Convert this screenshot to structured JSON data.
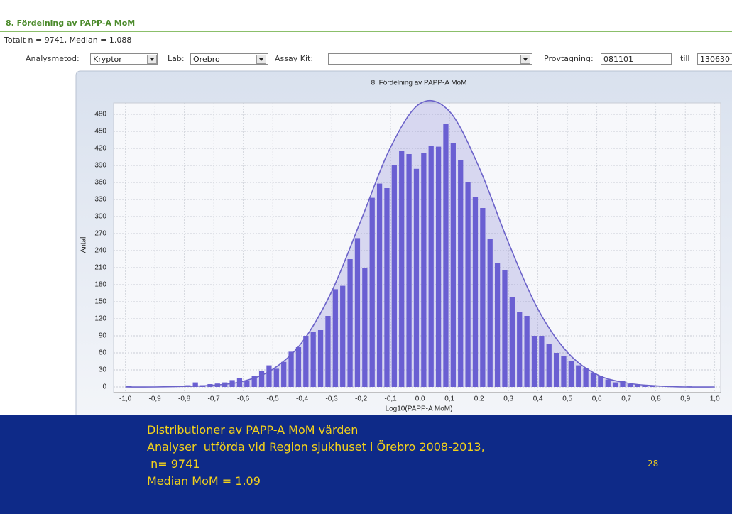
{
  "header": {
    "title": "8. Fördelning av PAPP-A MoM",
    "summary": "Totalt n = 9741, Median = 1.088"
  },
  "filters": [
    {
      "label": "Analysmetod:",
      "value": "Kryptor"
    },
    {
      "label": "Lab:",
      "value": "Örebro"
    },
    {
      "label": "Assay Kit:",
      "value": ""
    },
    {
      "label": "Provtagning:",
      "value": "081101"
    },
    {
      "label": "till",
      "value": "130630"
    }
  ],
  "chart_data": {
    "type": "histogram",
    "title": "8. Fördelning av PAPP-A MoM",
    "x_label": "Log10(PAPP-A MoM)",
    "y_label": "Antal",
    "color": "#6a5fd2",
    "bins": [
      -1,
      -0.975,
      -0.95,
      -0.925,
      -0.9,
      -0.875,
      -0.85,
      -0.825,
      -0.8,
      -0.775,
      -0.75,
      -0.725,
      -0.7,
      -0.675,
      -0.65,
      -0.625,
      -0.6,
      -0.575,
      -0.55,
      -0.525,
      -0.5,
      -0.475,
      -0.45,
      -0.425,
      -0.4,
      -0.375,
      -0.35,
      -0.325,
      -0.3,
      -0.275,
      -0.25,
      -0.225,
      -0.2,
      -0.175,
      -0.15,
      -0.125,
      -0.1,
      -0.075,
      -0.05,
      -0.025,
      0,
      0.025,
      0.05,
      0.075,
      0.1,
      0.125,
      0.15,
      0.175,
      0.2,
      0.225,
      0.25,
      0.275,
      0.3,
      0.325,
      0.35,
      0.375,
      0.4,
      0.425,
      0.45,
      0.475,
      0.5,
      0.525,
      0.55,
      0.575,
      0.6,
      0.625,
      0.65,
      0.675,
      0.7,
      0.725,
      0.75,
      0.775,
      0.8,
      0.825,
      0.85,
      0.875,
      0.9,
      0.925,
      0.95,
      0.975,
      1
    ],
    "values": [
      2,
      0,
      0,
      0,
      0,
      0,
      0,
      1,
      3,
      8,
      3,
      5,
      6,
      8,
      12,
      15,
      10,
      20,
      28,
      38,
      32,
      44,
      62,
      70,
      90,
      97,
      100,
      125,
      172,
      178,
      225,
      262,
      210,
      333,
      358,
      350,
      390,
      415,
      410,
      384,
      412,
      425,
      423,
      463,
      430,
      400,
      360,
      335,
      315,
      260,
      218,
      206,
      158,
      132,
      125,
      90,
      90,
      75,
      60,
      55,
      45,
      38,
      33,
      25,
      20,
      13,
      8,
      10,
      5,
      5,
      3,
      3,
      0,
      0,
      0,
      0,
      1,
      0,
      0,
      0
    ],
    "curve": {
      "color": "#6b62c9",
      "x": [
        -1,
        -0.9,
        -0.8,
        -0.7,
        -0.6,
        -0.5,
        -0.4,
        -0.3,
        -0.2,
        -0.1,
        0,
        0.1,
        0.2,
        0.3,
        0.4,
        0.5,
        0.6,
        0.7,
        0.8,
        0.9,
        1
      ],
      "values": [
        0,
        0,
        1,
        3,
        10,
        31,
        79,
        168,
        294,
        422,
        499,
        485,
        387,
        254,
        137,
        61,
        22,
        7,
        2,
        0,
        0
      ]
    },
    "xlim": [
      -1.04,
      1.02
    ],
    "xticks": [
      {
        "value": -1,
        "label": "-1,0"
      },
      {
        "value": -0.9,
        "label": "-0,9"
      },
      {
        "value": -0.8,
        "label": "-0,8"
      },
      {
        "value": -0.7,
        "label": "-0,7"
      },
      {
        "value": -0.6,
        "label": "-0,6"
      },
      {
        "value": -0.5,
        "label": "-0,5"
      },
      {
        "value": -0.4,
        "label": "-0,4"
      },
      {
        "value": -0.3,
        "label": "-0,3"
      },
      {
        "value": -0.2,
        "label": "-0,2"
      },
      {
        "value": -0.1,
        "label": "-0,1"
      },
      {
        "value": 0,
        "label": "0,0"
      },
      {
        "value": 0.1,
        "label": "0,1"
      },
      {
        "value": 0.2,
        "label": "0,2"
      },
      {
        "value": 0.3,
        "label": "0,3"
      },
      {
        "value": 0.4,
        "label": "0,4"
      },
      {
        "value": 0.5,
        "label": "0,5"
      },
      {
        "value": 0.6,
        "label": "0,6"
      },
      {
        "value": 0.7,
        "label": "0,7"
      },
      {
        "value": 0.8,
        "label": "0,8"
      },
      {
        "value": 0.9,
        "label": "0,9"
      },
      {
        "value": 1,
        "label": "1,0"
      }
    ],
    "ylim": [
      -10,
      500
    ],
    "yticks": [
      0,
      30,
      60,
      90,
      120,
      150,
      180,
      210,
      240,
      270,
      300,
      330,
      360,
      390,
      420,
      450,
      480
    ],
    "grid": true
  },
  "caption": {
    "lines": [
      "Distributioner av PAPP-A MoM värden",
      "Analyser  utförda vid Region sjukhuset i Örebro 2008-2013,",
      " n= 9741",
      "Median MoM = 1.09"
    ],
    "page_number": "28"
  }
}
